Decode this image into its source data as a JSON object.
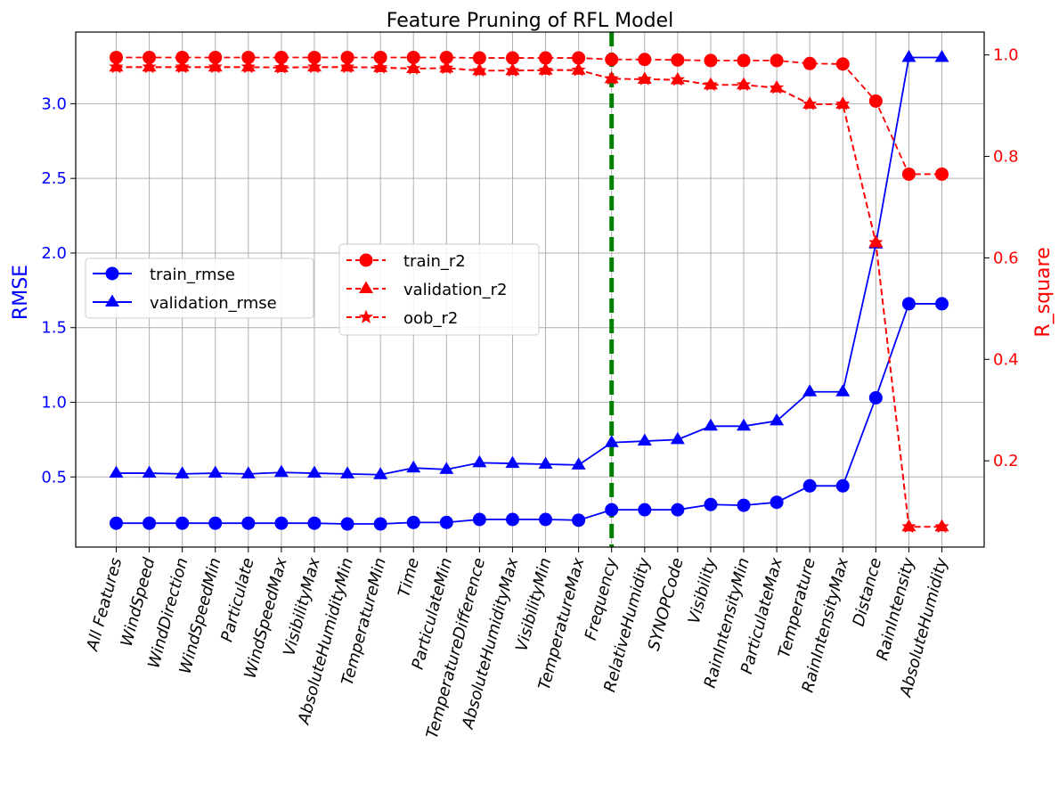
{
  "chart_data": {
    "type": "line",
    "title": "Feature Pruning of RFL Model",
    "ylabel_left": "RMSE",
    "ylabel_right": "R_square",
    "categories": [
      "All Features",
      "WindSpeed",
      "WindDirection",
      "WindSpeedMin",
      "Particulate",
      "WindSpeedMax",
      "VisibilityMax",
      "AbsoluteHumidityMin",
      "TemperatureMin",
      "Time",
      "ParticulateMin",
      "TemperatureDifference",
      "AbsoluteHumidityMax",
      "VisibilityMin",
      "TemperatureMax",
      "Frequency",
      "RelativeHumidity",
      "SYNOPCode",
      "Visibility",
      "RainIntensityMin",
      "ParticulateMax",
      "Temperature",
      "RainIntensityMax",
      "Distance",
      "RainIntensity",
      "AbsoluteHumidity"
    ],
    "ylim_left": [
      0.03,
      3.48
    ],
    "ylim_right": [
      0.03,
      1.045
    ],
    "yticks_left": [
      "0.5",
      "1.0",
      "1.5",
      "2.0",
      "2.5",
      "3.0"
    ],
    "yticks_right": [
      "0.2",
      "0.4",
      "0.6",
      "0.8",
      "1.0"
    ],
    "grid": true,
    "colors": {
      "rmse": "#0000ff",
      "r2": "#ff0000",
      "cutoff": "#008000"
    },
    "cutoff_category": "Frequency",
    "series_left": [
      {
        "name": "train_rmse",
        "marker": "circle",
        "values": [
          0.19,
          0.19,
          0.19,
          0.19,
          0.19,
          0.19,
          0.19,
          0.185,
          0.185,
          0.195,
          0.195,
          0.215,
          0.215,
          0.215,
          0.21,
          0.28,
          0.28,
          0.28,
          0.315,
          0.31,
          0.33,
          0.44,
          0.44,
          1.03,
          1.66,
          1.66
        ]
      },
      {
        "name": "validation_rmse",
        "marker": "triangle",
        "values": [
          0.525,
          0.525,
          0.52,
          0.525,
          0.52,
          0.53,
          0.525,
          0.52,
          0.515,
          0.56,
          0.55,
          0.595,
          0.59,
          0.585,
          0.58,
          0.73,
          0.74,
          0.75,
          0.84,
          0.84,
          0.875,
          1.07,
          1.07,
          2.06,
          3.31,
          3.31
        ]
      }
    ],
    "series_right": [
      {
        "name": "train_r2",
        "marker": "circle",
        "values": [
          0.995,
          0.995,
          0.995,
          0.995,
          0.995,
          0.995,
          0.995,
          0.995,
          0.995,
          0.995,
          0.995,
          0.994,
          0.994,
          0.994,
          0.994,
          0.991,
          0.991,
          0.99,
          0.989,
          0.989,
          0.989,
          0.983,
          0.982,
          0.909,
          0.765,
          0.765
        ]
      },
      {
        "name": "validation_r2",
        "marker": "triangle",
        "values": [
          0.976,
          0.976,
          0.976,
          0.976,
          0.976,
          0.975,
          0.976,
          0.976,
          0.975,
          0.973,
          0.974,
          0.969,
          0.969,
          0.97,
          0.97,
          0.953,
          0.952,
          0.951,
          0.941,
          0.941,
          0.935,
          0.903,
          0.903,
          0.63,
          0.07,
          0.07
        ]
      },
      {
        "name": "oob_r2",
        "marker": "star",
        "values": [
          0.976,
          0.976,
          0.976,
          0.976,
          0.976,
          0.975,
          0.976,
          0.976,
          0.975,
          0.973,
          0.974,
          0.969,
          0.969,
          0.97,
          0.97,
          0.953,
          0.952,
          0.951,
          0.941,
          0.941,
          0.935,
          0.903,
          0.903,
          0.63,
          0.07,
          0.07
        ]
      }
    ]
  }
}
